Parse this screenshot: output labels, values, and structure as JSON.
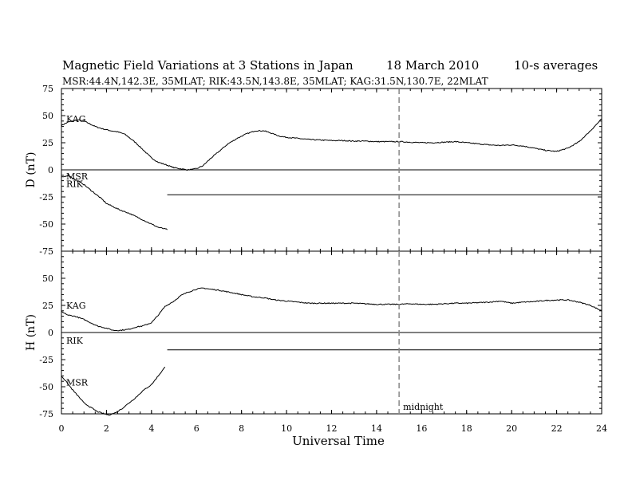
{
  "chart_data": {
    "type": "line",
    "title": {
      "main": "Magnetic Field Variations at 3 Stations in Japan",
      "date": "18  March   2010",
      "note": "10-s averages"
    },
    "subtitle": "MSR:44.4N,142.3E, 35MLAT;  RIK:43.5N,143.8E, 35MLAT;  KAG:31.5N,130.7E, 22MLAT",
    "xlabel": "Universal Time",
    "xlim": [
      0,
      24
    ],
    "xticks": [
      "0",
      "2",
      "4",
      "6",
      "8",
      "10",
      "12",
      "14",
      "16",
      "18",
      "20",
      "22",
      "24"
    ],
    "midnight": {
      "x": 15,
      "label": "midnight"
    },
    "panels": [
      {
        "name": "D",
        "ylabel": "D (nT)",
        "ylim": [
          -75,
          75
        ],
        "yticks": [
          "75",
          "50",
          "25",
          "0",
          "-25",
          "-50",
          "-75"
        ],
        "series": [
          {
            "name": "KAG",
            "x": [
              0,
              0.3,
              0.7,
              1.0,
              1.2,
              1.5,
              1.8,
              2.0,
              2.2,
              2.5,
              2.8,
              3.0,
              3.3,
              3.5,
              3.8,
              4.0,
              4.3,
              4.6,
              5.0,
              5.3,
              5.6,
              6.0,
              6.3,
              6.6,
              7.0,
              7.4,
              7.8,
              8.2,
              8.6,
              9.0,
              9.3,
              9.7,
              10.0,
              10.5,
              11.0,
              11.5,
              12.0,
              12.5,
              13.0,
              13.5,
              14.0,
              14.5,
              15.0,
              15.5,
              16.0,
              16.5,
              17.0,
              17.5,
              18.0,
              18.5,
              19.0,
              19.5,
              20.0,
              20.5,
              21.0,
              21.5,
              22.0,
              22.5,
              23.0,
              23.5,
              24.0
            ],
            "y": [
              41,
              44,
              46,
              45,
              43,
              40,
              38,
              37,
              36,
              35,
              33,
              30,
              25,
              21,
              15,
              11,
              7,
              5,
              2,
              1,
              0,
              1,
              4,
              10,
              17,
              24,
              29,
              33,
              36,
              36,
              34,
              31,
              30,
              29,
              28,
              27.5,
              27,
              27,
              26.5,
              26.5,
              26,
              26,
              26,
              25.5,
              25,
              25,
              25.5,
              26,
              25,
              24,
              23,
              22.5,
              23,
              22,
              20,
              18,
              17,
              20,
              26,
              36,
              47
            ]
          },
          {
            "name": "RIK",
            "x": [
              0,
              0.3,
              0.6,
              0.9,
              1.2,
              1.5,
              1.8,
              2.0,
              2.3,
              2.6,
              3.0,
              3.3,
              3.6,
              4.0,
              4.3,
              4.7
            ],
            "y": [
              -7,
              -5,
              -9,
              -12,
              -17,
              -22,
              -27,
              -31,
              -34,
              -37,
              -40,
              -43,
              -46,
              -50,
              -53,
              -55
            ]
          },
          {
            "name": "MSR",
            "x": [
              4.7,
              24
            ],
            "y": [
              -23,
              -23
            ]
          }
        ]
      },
      {
        "name": "H",
        "ylabel": "H (nT)",
        "ylim": [
          -75,
          75
        ],
        "yticks": [
          "75",
          "50",
          "25",
          "0",
          "-25",
          "-50",
          "-75"
        ],
        "series": [
          {
            "name": "KAG",
            "x": [
              0,
              0.3,
              0.6,
              1.0,
              1.3,
              1.6,
              2.0,
              2.3,
              2.6,
              3.0,
              3.3,
              3.6,
              4.0,
              4.3,
              4.6,
              5.0,
              5.3,
              5.6,
              6.0,
              6.3,
              6.6,
              7.0,
              7.5,
              8.0,
              8.5,
              9.0,
              9.5,
              10.0,
              10.5,
              11.0,
              11.5,
              12.0,
              12.5,
              13.0,
              13.5,
              14.0,
              14.5,
              15.0,
              15.5,
              16.0,
              16.5,
              17.0,
              17.5,
              18.0,
              18.5,
              19.0,
              19.5,
              20.0,
              20.5,
              21.0,
              21.5,
              22.0,
              22.5,
              23.0,
              23.5,
              24.0
            ],
            "y": [
              19,
              16,
              15,
              12,
              9,
              6,
              4,
              2,
              2,
              3,
              5,
              6,
              9,
              16,
              24,
              29,
              34,
              37,
              40,
              41,
              40,
              39,
              37,
              35,
              33,
              32,
              30,
              29,
              28,
              27,
              27,
              27,
              27,
              27,
              26.5,
              26,
              26,
              26,
              26.5,
              26,
              26,
              26.5,
              27,
              27,
              27.5,
              28,
              29,
              27,
              28,
              28.5,
              29.5,
              30,
              30,
              28,
              25,
              20
            ]
          },
          {
            "name": "RIK",
            "x": [
              4.7,
              24
            ],
            "y": [
              -16,
              -16
            ]
          },
          {
            "name": "MSR",
            "x": [
              0,
              0.2,
              0.5,
              0.8,
              1.0,
              1.3,
              1.6,
              1.9,
              2.1,
              2.4,
              2.7,
              3.0,
              3.3,
              3.6,
              4.0,
              4.3,
              4.6
            ],
            "y": [
              -40,
              -45,
              -53,
              -60,
              -65,
              -69,
              -73,
              -75,
              -76,
              -74,
              -70,
              -65,
              -60,
              -54,
              -48,
              -40,
              -32
            ]
          }
        ]
      }
    ]
  }
}
